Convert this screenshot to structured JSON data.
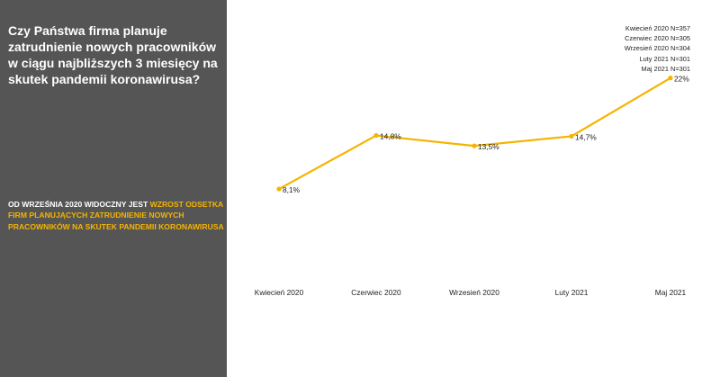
{
  "sidebar": {
    "title": "Czy Państwa firma planuje zatrudnienie nowych pracowników w ciągu najbliższych 3 miesięcy na skutek pandemii koronawirusa?",
    "note_plain": "OD WRZEŚNIA 2020 WIDOCZNY JEST ",
    "note_highlight": "WZROST ODSETKA FIRM PLANUJĄCYCH ZATRUDNIENIE NOWYCH PRACOWNIKÓW NA SKUTEK PANDEMII KORONAWIRUSA"
  },
  "legend": [
    "Kwiecień 2020 N=357",
    "Czerwiec 2020 N=305",
    "Wrzesień 2020 N=304",
    "Luty 2021 N=301",
    "Maj 2021 N=301"
  ],
  "colors": {
    "sidebar_bg": "#555555",
    "highlight": "#f5b400",
    "line": "#f5b400"
  },
  "chart_data": {
    "type": "line",
    "categories": [
      "Kwiecień 2020",
      "Czerwiec 2020",
      "Wrzesień 2020",
      "Luty 2021",
      "Maj 2021"
    ],
    "values": [
      8.1,
      14.8,
      13.5,
      14.7,
      22
    ],
    "data_labels": [
      "8,1%",
      "14,8%",
      "13,5%",
      "14,7%",
      "22%"
    ],
    "ylim": [
      0,
      25
    ],
    "grid": false,
    "legend_position": "top-right"
  }
}
